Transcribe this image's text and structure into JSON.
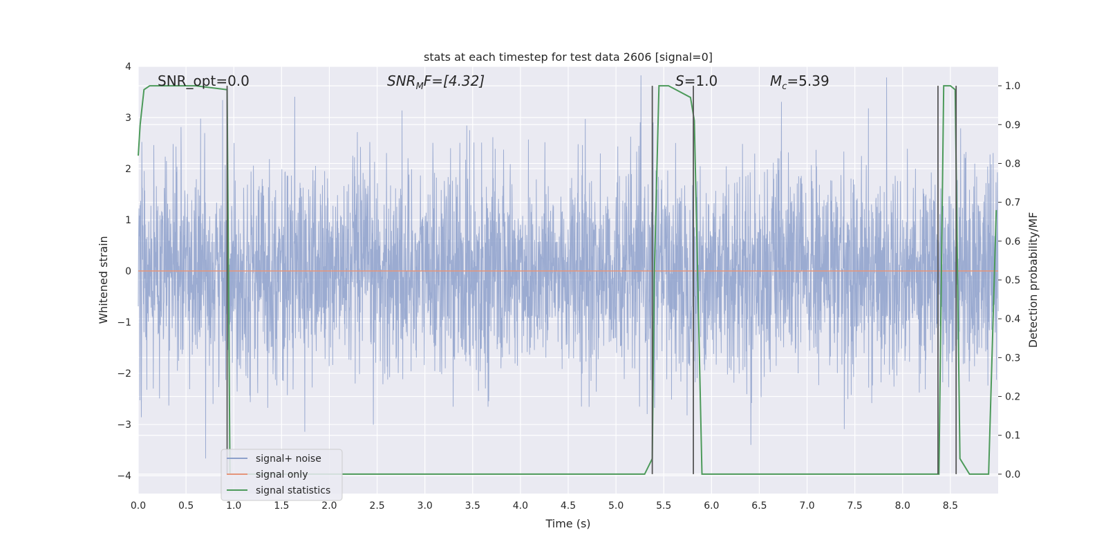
{
  "chart_data": {
    "type": "line",
    "title": "stats at each timestep for test data 2606 [signal=0]",
    "xlabel": "Time (s)",
    "ylabel": "Whitened strain",
    "y2label": "Detection probability/MF",
    "xlim": [
      0.0,
      9.0
    ],
    "ylim": [
      -4.35,
      4.0
    ],
    "y2lim": [
      -0.05,
      1.05
    ],
    "xticks": [
      "0.0",
      "0.5",
      "1.0",
      "1.5",
      "2.0",
      "2.5",
      "3.0",
      "3.5",
      "4.0",
      "4.5",
      "5.0",
      "5.5",
      "6.0",
      "6.5",
      "7.0",
      "7.5",
      "8.0",
      "8.5"
    ],
    "yticks": [
      "4",
      "3",
      "2",
      "1",
      "0",
      "−1",
      "−2",
      "−3",
      "−4"
    ],
    "y2ticks": [
      "1.0",
      "0.9",
      "0.8",
      "0.7",
      "0.6",
      "0.5",
      "0.4",
      "0.3",
      "0.2",
      "0.1",
      "0.0"
    ],
    "grid": true,
    "legend": "lower-left",
    "annotations": {
      "snr_opt": "SNR_opt=0.0",
      "snr_mf_main": "SNR",
      "snr_mf_sub": "M",
      "snr_mf_tail": "F=[4.32]",
      "s_main": "S",
      "s_tail": "=1.0",
      "mc_main": "M",
      "mc_sub": "c",
      "mc_tail": "=5.39"
    },
    "series": [
      {
        "name": "signal+ noise",
        "color": "#8da0cb",
        "description": "dense whitened noise, envelope roughly ±2.5"
      },
      {
        "name": "signal only",
        "color": "#e5957a",
        "values_constant": 0
      },
      {
        "name": "signal statistics",
        "color": "#4c9a5a",
        "x": [
          0.0,
          0.02,
          0.06,
          0.12,
          0.2,
          0.6,
          0.93,
          0.96,
          1.05,
          3.3,
          3.4,
          5.3,
          5.38,
          5.4,
          5.45,
          5.55,
          5.78,
          5.82,
          5.9,
          5.95,
          8.35,
          8.38,
          8.43,
          8.5,
          8.55,
          8.6,
          8.7,
          8.9,
          8.98
        ],
        "values": [
          0.82,
          0.9,
          0.99,
          1.0,
          1.0,
          1.0,
          0.99,
          0.0,
          0.0,
          0.0,
          0.0,
          0.0,
          0.04,
          0.5,
          1.0,
          1.0,
          0.97,
          0.91,
          0.0,
          0.0,
          0.0,
          0.0,
          1.0,
          1.0,
          0.99,
          0.04,
          0.0,
          0.0,
          0.68
        ]
      }
    ],
    "vertical_markers": [
      0.93,
      5.38,
      5.81,
      8.37,
      8.56
    ],
    "marker_color": "#555555"
  }
}
